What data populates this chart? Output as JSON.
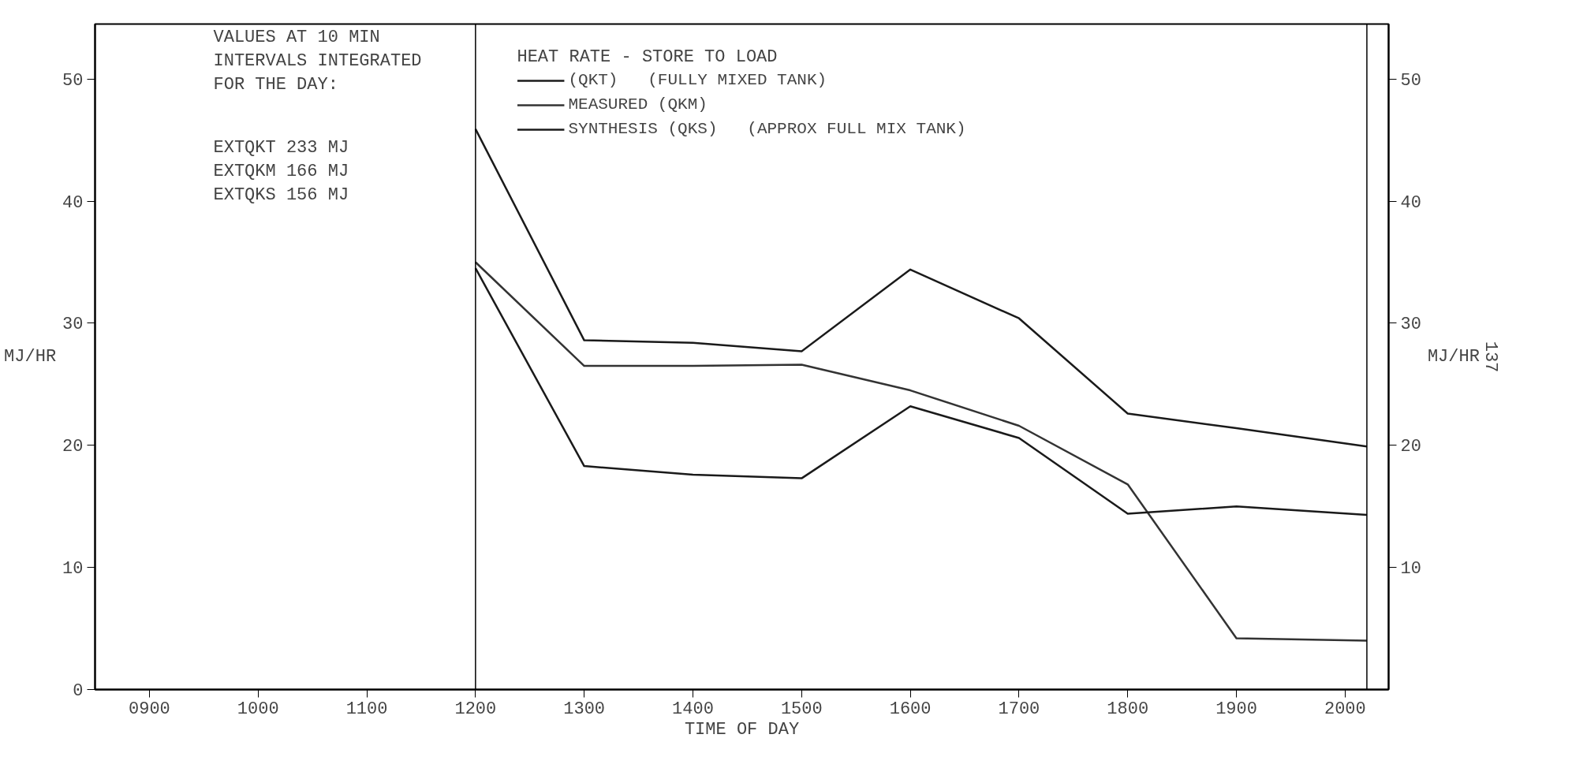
{
  "chart_data": {
    "type": "line",
    "xlabel": "TIME OF DAY",
    "ylabel": "MJ/HR",
    "y2label": "MJ/HR",
    "legend_title": "HEAT RATE - STORE TO LOAD",
    "x": [
      1200,
      1300,
      1400,
      1500,
      1600,
      1700,
      1800,
      1900,
      2020
    ],
    "series": [
      {
        "name": "(QKT)   (FULLY MIXED TANK)",
        "color": "#1a1a1a",
        "values": [
          45.9,
          28.6,
          28.4,
          27.7,
          34.4,
          30.4,
          22.6,
          21.4,
          19.9
        ]
      },
      {
        "name": "MEASURED (QKM)",
        "color": "#333333",
        "values": [
          35.0,
          26.5,
          26.5,
          26.6,
          24.5,
          21.6,
          16.8,
          4.2,
          4.0
        ]
      },
      {
        "name": "SYNTHESIS (QKS)   (APPROX FULL MIX TANK)",
        "color": "#1a1a1a",
        "values": [
          34.5,
          18.3,
          17.6,
          17.3,
          23.2,
          20.6,
          14.4,
          15.0,
          14.3
        ]
      }
    ],
    "xlim": [
      850,
      2040
    ],
    "ylim": [
      0,
      54.5
    ],
    "y2lim": [
      0,
      54.5
    ],
    "xticks": [
      {
        "value": 900,
        "label": "0900"
      },
      1000,
      1100,
      1200,
      1300,
      1400,
      1500,
      1600,
      1700,
      1800,
      1900,
      2000
    ],
    "yticks": [
      0,
      10,
      20,
      30,
      40,
      50
    ],
    "y2ticks": [
      10,
      20,
      30,
      40,
      50
    ],
    "ref_lines": [
      {
        "axis": "x",
        "value": 1200
      },
      {
        "axis": "x",
        "value": 2020
      }
    ],
    "annotations": [
      "VALUES AT 10 MIN\nINTERVALS INTEGRATED\nFOR THE DAY:",
      "EXTQKT   233 MJ\nEXTQKM   166 MJ\nEXTQKS   156 MJ",
      "137"
    ],
    "legend": "top",
    "grid": false,
    "marker": "none",
    "line_style": "solid"
  }
}
